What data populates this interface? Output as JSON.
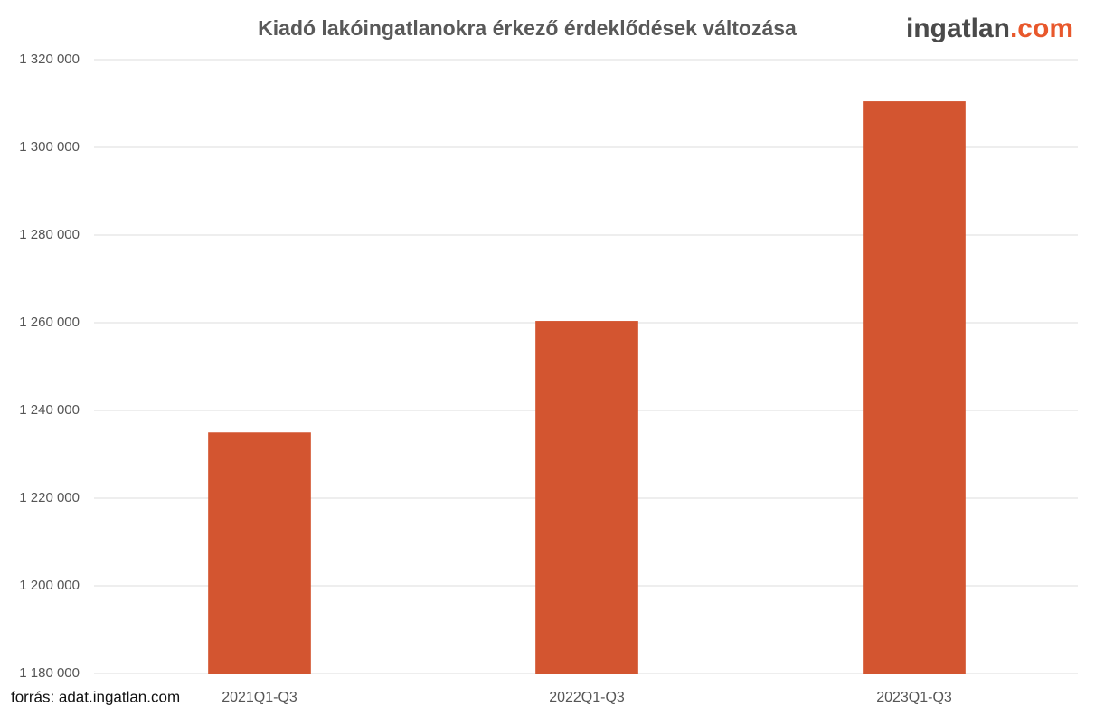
{
  "chart_data": {
    "type": "bar",
    "title": "Kiadó lakóingatlanokra érkező érdeklődések változása",
    "logo": {
      "name": "ingatlan",
      "suffix": ".com"
    },
    "source": "forrás: adat.ingatlan.com",
    "categories": [
      "2021Q1-Q3",
      "2022Q1-Q3",
      "2023Q1-Q3"
    ],
    "values": [
      1235000,
      1260400,
      1310500
    ],
    "color": "#d35530",
    "ylim": [
      1180000,
      1320000
    ],
    "yticks": [
      {
        "value": 1180000,
        "label": "1 180 000"
      },
      {
        "value": 1200000,
        "label": "1 200 000"
      },
      {
        "value": 1220000,
        "label": "1 220 000"
      },
      {
        "value": 1240000,
        "label": "1 240 000"
      },
      {
        "value": 1260000,
        "label": "1 260 000"
      },
      {
        "value": 1280000,
        "label": "1 280 000"
      },
      {
        "value": 1300000,
        "label": "1 300 000"
      },
      {
        "value": 1320000,
        "label": "1 320 000"
      }
    ],
    "grid": true
  }
}
